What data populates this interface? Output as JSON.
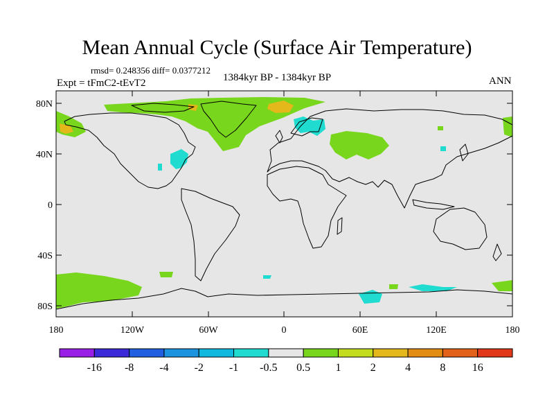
{
  "title": "Mean Annual Cycle (Surface Air Temperature)",
  "stats": "rmsd= 0.248356 diff= 0.0377212",
  "experiment": "Expt = tFmC2-tEvT2",
  "period": "1384kyr BP - 1384kyr BP",
  "season": "ANN",
  "axes": {
    "lat_ticks": [
      "80N",
      "40N",
      "0",
      "40S",
      "80S"
    ],
    "lon_ticks": [
      "180",
      "120W",
      "60W",
      "0",
      "60E",
      "120E",
      "180"
    ]
  },
  "colorbar": {
    "colors": [
      "#9a1fe6",
      "#3b2ad8",
      "#1f5fe0",
      "#1b93de",
      "#10b8e0",
      "#20dcd0",
      "#e6e6e6",
      "#78d61c",
      "#c4dc1e",
      "#e4b81a",
      "#e38c14",
      "#e2621a",
      "#e03818"
    ],
    "labels": [
      "-16",
      "-8",
      "-4",
      "-2",
      "-1",
      "-0.5",
      "0.5",
      "1",
      "2",
      "4",
      "8",
      "16"
    ]
  },
  "colors": {
    "background": "#e6e6e6",
    "coastline": "#000000"
  }
}
